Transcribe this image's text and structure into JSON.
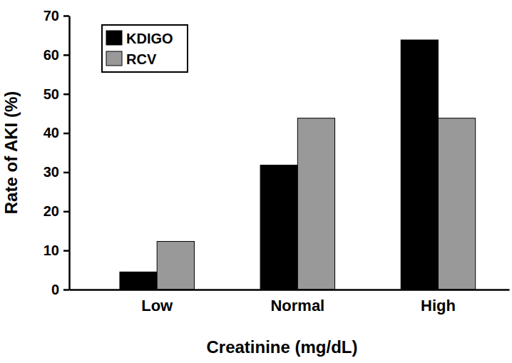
{
  "chart_data": {
    "type": "bar",
    "x_label": "Creatinine (mg/dL)",
    "y_label": "Rate of AKI (%)",
    "categories": [
      "Low",
      "Normal",
      "High"
    ],
    "series": [
      {
        "name": "KDIGO",
        "color": "#000000",
        "values": [
          4.5,
          31.8,
          63.8
        ]
      },
      {
        "name": "RCV",
        "color": "#999999",
        "values": [
          12.3,
          43.8,
          43.8
        ]
      }
    ],
    "ylim": [
      0,
      70
    ],
    "yticks": [
      0,
      10,
      20,
      30,
      40,
      50,
      60,
      70
    ],
    "grid": false,
    "legend": "upper left"
  }
}
